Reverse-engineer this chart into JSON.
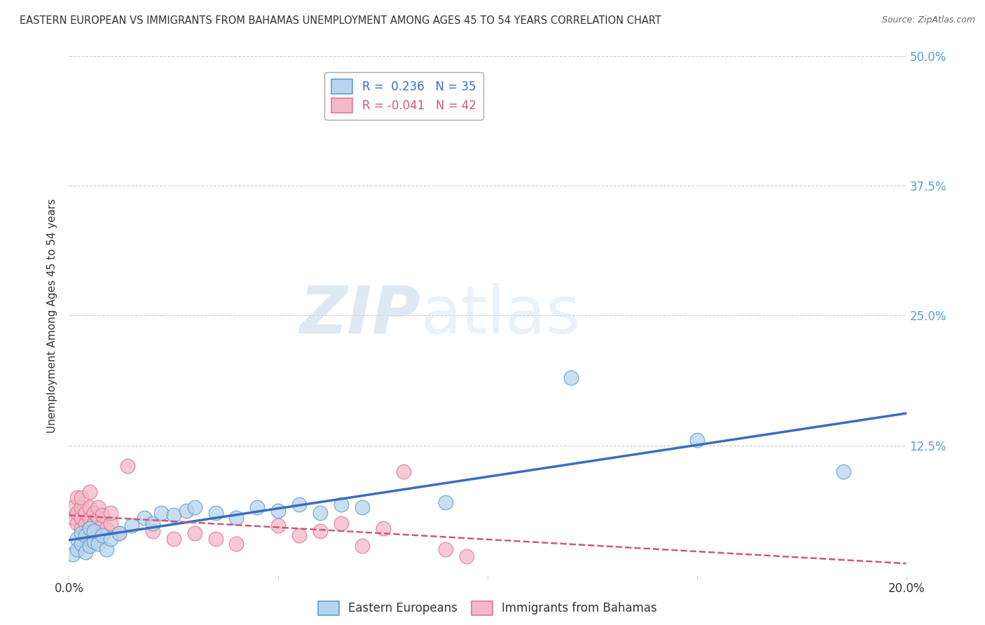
{
  "title": "EASTERN EUROPEAN VS IMMIGRANTS FROM BAHAMAS UNEMPLOYMENT AMONG AGES 45 TO 54 YEARS CORRELATION CHART",
  "source": "Source: ZipAtlas.com",
  "ylabel": "Unemployment Among Ages 45 to 54 years",
  "xlim": [
    0.0,
    0.2
  ],
  "ylim": [
    0.0,
    0.5
  ],
  "yticks": [
    0.0,
    0.125,
    0.25,
    0.375,
    0.5
  ],
  "ytick_labels": [
    "",
    "12.5%",
    "25.0%",
    "37.5%",
    "50.0%"
  ],
  "xticks": [
    0.0,
    0.05,
    0.1,
    0.15,
    0.2
  ],
  "xtick_labels": [
    "0.0%",
    "",
    "",
    "",
    "20.0%"
  ],
  "series1_label": "Eastern Europeans",
  "series1_color": "#b8d4ec",
  "series1_edge_color": "#5a9fd4",
  "series1_line_color": "#3a6dbe",
  "series1_R": 0.236,
  "series1_N": 35,
  "series2_label": "Immigrants from Bahamas",
  "series2_color": "#f4b8c8",
  "series2_edge_color": "#e07898",
  "series2_line_color": "#d05878",
  "series2_R": -0.041,
  "series2_N": 42,
  "watermark_zip": "ZIP",
  "watermark_atlas": "atlas",
  "background_color": "#ffffff",
  "grid_color": "#cccccc",
  "title_color": "#333333",
  "axis_label_color": "#333333",
  "tick_color_right": "#5a9fd4",
  "series1_x": [
    0.001,
    0.002,
    0.002,
    0.003,
    0.003,
    0.004,
    0.004,
    0.005,
    0.005,
    0.006,
    0.006,
    0.007,
    0.008,
    0.009,
    0.01,
    0.012,
    0.015,
    0.018,
    0.02,
    0.022,
    0.025,
    0.028,
    0.03,
    0.035,
    0.04,
    0.045,
    0.05,
    0.055,
    0.06,
    0.065,
    0.07,
    0.09,
    0.12,
    0.15,
    0.185
  ],
  "series1_y": [
    0.02,
    0.025,
    0.035,
    0.03,
    0.04,
    0.022,
    0.038,
    0.028,
    0.045,
    0.032,
    0.042,
    0.03,
    0.038,
    0.025,
    0.035,
    0.04,
    0.048,
    0.055,
    0.05,
    0.06,
    0.058,
    0.062,
    0.065,
    0.06,
    0.055,
    0.065,
    0.062,
    0.068,
    0.06,
    0.068,
    0.065,
    0.07,
    0.19,
    0.13,
    0.1
  ],
  "series2_x": [
    0.001,
    0.001,
    0.002,
    0.002,
    0.002,
    0.003,
    0.003,
    0.003,
    0.003,
    0.004,
    0.004,
    0.004,
    0.005,
    0.005,
    0.005,
    0.005,
    0.006,
    0.006,
    0.007,
    0.007,
    0.007,
    0.008,
    0.008,
    0.009,
    0.01,
    0.01,
    0.012,
    0.014,
    0.02,
    0.025,
    0.03,
    0.035,
    0.04,
    0.05,
    0.055,
    0.06,
    0.065,
    0.07,
    0.075,
    0.08,
    0.09,
    0.095
  ],
  "series2_y": [
    0.055,
    0.065,
    0.05,
    0.06,
    0.075,
    0.045,
    0.055,
    0.065,
    0.075,
    0.04,
    0.05,
    0.06,
    0.045,
    0.055,
    0.065,
    0.08,
    0.05,
    0.06,
    0.045,
    0.055,
    0.065,
    0.048,
    0.058,
    0.045,
    0.05,
    0.06,
    0.04,
    0.105,
    0.042,
    0.035,
    0.04,
    0.035,
    0.03,
    0.048,
    0.038,
    0.042,
    0.05,
    0.028,
    0.045,
    0.1,
    0.025,
    0.018
  ]
}
